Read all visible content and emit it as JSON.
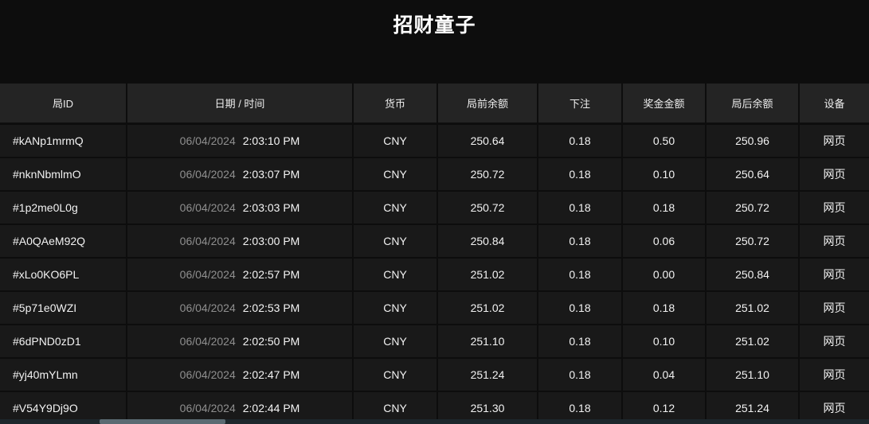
{
  "title": "招财童子",
  "colors": {
    "background": "#0d0d0d",
    "header_bg": "#242424",
    "row_bg": "#191919",
    "text": "#f2f2f2",
    "date_muted": "#8f8f8f",
    "scrollbar_track": "#1d272c",
    "scrollbar_thumb": "#5a6a72"
  },
  "table": {
    "columns": [
      "局ID",
      "日期 / 时间",
      "货币",
      "局前余额",
      "下注",
      "奖金金额",
      "局后余额",
      "设备"
    ],
    "rows": [
      {
        "id": "#kANp1mrmQ",
        "date": "06/04/2024",
        "time": "2:03:10 PM",
        "currency": "CNY",
        "balance_before": "250.64",
        "bet": "0.18",
        "prize": "0.50",
        "balance_after": "250.96",
        "device": "网页"
      },
      {
        "id": "#nknNbmlmO",
        "date": "06/04/2024",
        "time": "2:03:07 PM",
        "currency": "CNY",
        "balance_before": "250.72",
        "bet": "0.18",
        "prize": "0.10",
        "balance_after": "250.64",
        "device": "网页"
      },
      {
        "id": "#1p2me0L0g",
        "date": "06/04/2024",
        "time": "2:03:03 PM",
        "currency": "CNY",
        "balance_before": "250.72",
        "bet": "0.18",
        "prize": "0.18",
        "balance_after": "250.72",
        "device": "网页"
      },
      {
        "id": "#A0QAeM92Q",
        "date": "06/04/2024",
        "time": "2:03:00 PM",
        "currency": "CNY",
        "balance_before": "250.84",
        "bet": "0.18",
        "prize": "0.06",
        "balance_after": "250.72",
        "device": "网页"
      },
      {
        "id": "#xLo0KO6PL",
        "date": "06/04/2024",
        "time": "2:02:57 PM",
        "currency": "CNY",
        "balance_before": "251.02",
        "bet": "0.18",
        "prize": "0.00",
        "balance_after": "250.84",
        "device": "网页"
      },
      {
        "id": "#5p71e0WZI",
        "date": "06/04/2024",
        "time": "2:02:53 PM",
        "currency": "CNY",
        "balance_before": "251.02",
        "bet": "0.18",
        "prize": "0.18",
        "balance_after": "251.02",
        "device": "网页"
      },
      {
        "id": "#6dPND0zD1",
        "date": "06/04/2024",
        "time": "2:02:50 PM",
        "currency": "CNY",
        "balance_before": "251.10",
        "bet": "0.18",
        "prize": "0.10",
        "balance_after": "251.02",
        "device": "网页"
      },
      {
        "id": "#yj40mYLmn",
        "date": "06/04/2024",
        "time": "2:02:47 PM",
        "currency": "CNY",
        "balance_before": "251.24",
        "bet": "0.18",
        "prize": "0.04",
        "balance_after": "251.10",
        "device": "网页"
      },
      {
        "id": "#V54Y9Dj9O",
        "date": "06/04/2024",
        "time": "2:02:44 PM",
        "currency": "CNY",
        "balance_before": "251.30",
        "bet": "0.18",
        "prize": "0.12",
        "balance_after": "251.24",
        "device": "网页"
      }
    ]
  }
}
